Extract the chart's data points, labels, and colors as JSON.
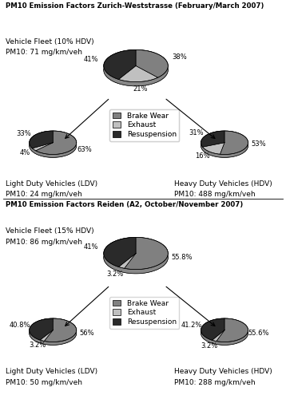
{
  "title1": "PM10 Emission Factors Zurich-Weststrasse (February/March 2007)",
  "title2": "PM10 Emission Factors Reiden (A2, October/November 2007)",
  "colors": {
    "brake_wear": "#808080",
    "exhaust": "#c0c0c0",
    "resuspension": "#2a2a2a"
  },
  "section1": {
    "fleet": {
      "label1": "Vehicle Fleet (10% HDV)",
      "label2": "PM10: 71 mg/km/veh",
      "values": [
        38,
        21,
        41
      ],
      "pct_labels": [
        "38%",
        "21%",
        "41%"
      ]
    },
    "ldv": {
      "label1": "Light Duty Vehicles (LDV)",
      "label2": "PM10: 24 mg/km/veh",
      "values": [
        63,
        4,
        33
      ],
      "pct_labels": [
        "63%",
        "4%",
        "33%"
      ]
    },
    "hdv": {
      "label1": "Heavy Duty Vehicles (HDV)",
      "label2": "PM10: 488 mg/km/veh",
      "values": [
        53,
        16,
        31
      ],
      "pct_labels": [
        "53%",
        "16%",
        "31%"
      ]
    }
  },
  "section2": {
    "fleet": {
      "label1": "Vehicle Fleet (15% HDV)",
      "label2": "PM10: 86 mg/km/veh",
      "values": [
        55.8,
        3.2,
        41.0
      ],
      "pct_labels": [
        "55.8%",
        "3.2%",
        "41%"
      ]
    },
    "ldv": {
      "label1": "Light Duty Vehicles (LDV)",
      "label2": "PM10: 50 mg/km/veh",
      "values": [
        56.0,
        3.2,
        40.8
      ],
      "pct_labels": [
        "56%",
        "3.2%",
        "40.8%"
      ]
    },
    "hdv": {
      "label1": "Heavy Duty Vehicles (HDV)",
      "label2": "PM10: 288 mg/km/veh",
      "values": [
        55.6,
        3.2,
        41.2
      ],
      "pct_labels": [
        "55.6%",
        "3.2%",
        "41.2%"
      ]
    }
  },
  "legend_labels": [
    "Brake Wear",
    "Exhaust",
    "Resuspension"
  ],
  "pie_colors": [
    "#808080",
    "#c0c0c0",
    "#2a2a2a"
  ],
  "pie_edge_colors": [
    "#555555",
    "#999999",
    "#111111"
  ]
}
